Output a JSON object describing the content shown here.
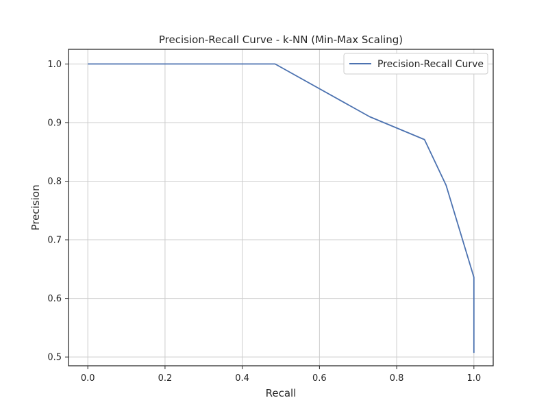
{
  "chart_data": {
    "type": "line",
    "title": "Precision-Recall Curve - k-NN (Min-Max Scaling)",
    "xlabel": "Recall",
    "ylabel": "Precision",
    "xlim": [
      -0.05,
      1.05
    ],
    "ylim": [
      0.485,
      1.025
    ],
    "xticks": [
      0.0,
      0.2,
      0.4,
      0.6,
      0.8,
      1.0
    ],
    "xtick_labels": [
      "0.0",
      "0.2",
      "0.4",
      "0.6",
      "0.8",
      "1.0"
    ],
    "yticks": [
      0.5,
      0.6,
      0.7,
      0.8,
      0.9,
      1.0
    ],
    "ytick_labels": [
      "0.5",
      "0.6",
      "0.7",
      "0.8",
      "0.9",
      "1.0"
    ],
    "grid": true,
    "legend_position": "top-right",
    "series": [
      {
        "name": "Precision-Recall Curve",
        "color": "#4c72b0",
        "x": [
          0.0,
          0.485,
          0.73,
          0.872,
          0.928,
          1.0,
          1.0
        ],
        "y": [
          1.0,
          1.0,
          0.91,
          0.871,
          0.793,
          0.636,
          0.507
        ]
      }
    ]
  }
}
